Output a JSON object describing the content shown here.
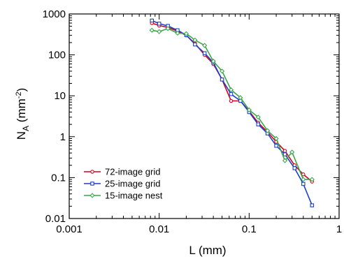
{
  "chart_data": {
    "type": "line",
    "xlabel": "L (mm)",
    "ylabel_main": "N",
    "ylabel_sub": "A",
    "ylabel_unit_pre": " (mm",
    "ylabel_unit_sup": "-2",
    "ylabel_unit_post": ")",
    "xscale": "log",
    "yscale": "log",
    "xlim": [
      0.001,
      1
    ],
    "ylim": [
      0.01,
      1000
    ],
    "x_ticks": [
      {
        "value": 0.001,
        "label": "0.001"
      },
      {
        "value": 0.01,
        "label": "0.01"
      },
      {
        "value": 0.1,
        "label": "0.1"
      },
      {
        "value": 1,
        "label": "1"
      }
    ],
    "y_ticks": [
      {
        "value": 0.01,
        "label": "0.01"
      },
      {
        "value": 0.1,
        "label": "0.1"
      },
      {
        "value": 1,
        "label": "1"
      },
      {
        "value": 10,
        "label": "10"
      },
      {
        "value": 100,
        "label": "100"
      },
      {
        "value": 1000,
        "label": "1000"
      }
    ],
    "grid": false,
    "legend_position": "bottom-left",
    "series": [
      {
        "name": "72-image grid",
        "color": "#d4001a",
        "marker": "circle",
        "points": [
          [
            0.0083,
            600
          ],
          [
            0.01,
            520
          ],
          [
            0.0125,
            470
          ],
          [
            0.016,
            380
          ],
          [
            0.02,
            300
          ],
          [
            0.025,
            190
          ],
          [
            0.032,
            100
          ],
          [
            0.04,
            60
          ],
          [
            0.05,
            25
          ],
          [
            0.063,
            7.5
          ],
          [
            0.08,
            7.5
          ],
          [
            0.1,
            4.2
          ],
          [
            0.126,
            2.2
          ],
          [
            0.16,
            1.3
          ],
          [
            0.2,
            0.75
          ],
          [
            0.25,
            0.45
          ],
          [
            0.32,
            0.2
          ],
          [
            0.4,
            0.12
          ],
          [
            0.5,
            0.08
          ]
        ]
      },
      {
        "name": "25-image grid",
        "color": "#1a3fcc",
        "marker": "square",
        "points": [
          [
            0.0083,
            690
          ],
          [
            0.01,
            580
          ],
          [
            0.0125,
            510
          ],
          [
            0.016,
            400
          ],
          [
            0.02,
            305
          ],
          [
            0.025,
            180
          ],
          [
            0.032,
            110
          ],
          [
            0.04,
            65
          ],
          [
            0.05,
            25
          ],
          [
            0.063,
            11
          ],
          [
            0.08,
            7.5
          ],
          [
            0.1,
            4
          ],
          [
            0.126,
            2
          ],
          [
            0.16,
            1.2
          ],
          [
            0.2,
            0.6
          ],
          [
            0.25,
            0.37
          ],
          [
            0.32,
            0.17
          ],
          [
            0.4,
            0.07
          ],
          [
            0.5,
            0.021
          ]
        ]
      },
      {
        "name": "15-image nest",
        "color": "#3aa64a",
        "marker": "diamond",
        "points": [
          [
            0.0083,
            400
          ],
          [
            0.01,
            370
          ],
          [
            0.0125,
            440
          ],
          [
            0.016,
            340
          ],
          [
            0.02,
            330
          ],
          [
            0.025,
            230
          ],
          [
            0.032,
            170
          ],
          [
            0.04,
            70
          ],
          [
            0.05,
            40
          ],
          [
            0.063,
            14
          ],
          [
            0.08,
            9
          ],
          [
            0.1,
            4.5
          ],
          [
            0.126,
            3
          ],
          [
            0.16,
            1.4
          ],
          [
            0.2,
            0.9
          ],
          [
            0.25,
            0.26
          ],
          [
            0.3,
            0.42
          ],
          [
            0.4,
            0.09
          ],
          [
            0.5,
            0.09
          ]
        ]
      }
    ]
  }
}
